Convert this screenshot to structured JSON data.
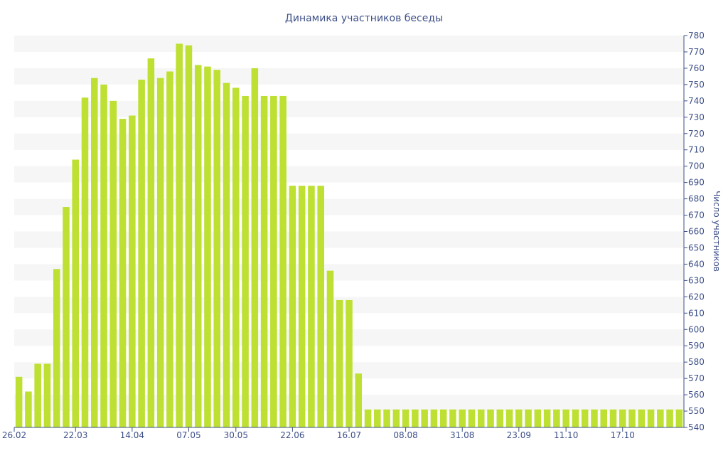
{
  "chart_data": {
    "type": "bar",
    "title": "Динамика участников беседы",
    "ylabel": "Число участников",
    "y_axis_position": "right",
    "ylim": [
      540,
      780
    ],
    "yticks": [
      540,
      550,
      560,
      570,
      580,
      590,
      600,
      610,
      620,
      630,
      640,
      650,
      660,
      670,
      680,
      690,
      700,
      710,
      720,
      730,
      740,
      750,
      760,
      770,
      780
    ],
    "x_tick_labels": [
      "26.02",
      "22.03",
      "14.04",
      "07.05",
      "30.05",
      "22.06",
      "16.07",
      "08.08",
      "31.08",
      "23.09",
      "11.10",
      "17.10"
    ],
    "values": [
      571,
      562,
      579,
      579,
      637,
      675,
      704,
      742,
      754,
      750,
      740,
      729,
      731,
      753,
      766,
      754,
      758,
      775,
      774,
      762,
      761,
      759,
      751,
      748,
      743,
      760,
      743,
      743,
      743,
      688,
      688,
      688,
      688,
      636,
      618,
      618,
      573,
      551,
      551,
      551,
      551,
      551,
      551,
      551,
      551,
      551,
      551,
      551,
      551,
      551,
      551,
      551,
      551,
      551,
      551,
      551,
      551,
      551,
      551,
      551,
      551,
      551,
      551,
      551,
      551,
      551,
      551,
      551,
      551,
      551,
      551
    ],
    "bar_color": "#bde033",
    "text_color": "#3e5089",
    "band_color": "#f6f6f6",
    "grid": "alternating-bands",
    "legend": "none"
  }
}
